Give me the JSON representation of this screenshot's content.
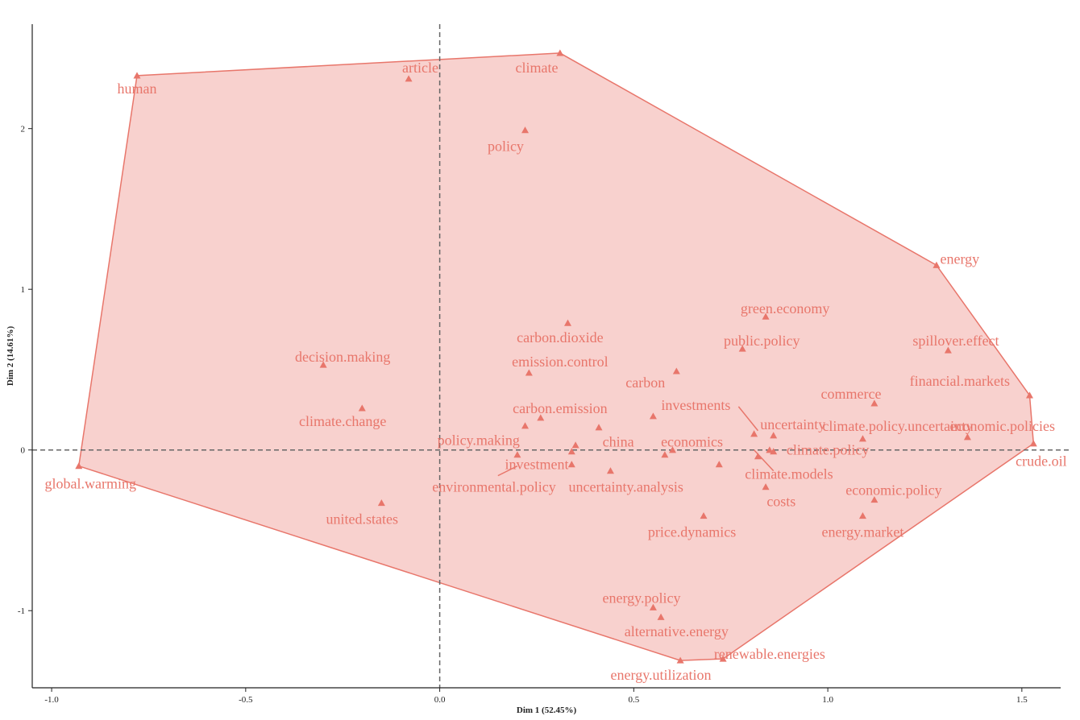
{
  "chart_data": {
    "type": "scatter",
    "title": "",
    "xlabel": "Dim 1 (52.45%)",
    "ylabel": "Dim 2 (14.61%)",
    "xlim": [
      -1.05,
      1.6
    ],
    "ylim": [
      -1.48,
      2.65
    ],
    "xticks": [
      -1.0,
      -0.5,
      0.0,
      0.5,
      1.0,
      1.5
    ],
    "xtick_labels": [
      "-1.0",
      "-0.5",
      "0.0",
      "0.5",
      "1.0",
      "1.5"
    ],
    "yticks": [
      -1,
      0,
      1,
      2
    ],
    "ytick_labels": [
      "-1",
      "0",
      "1",
      "2"
    ],
    "grid": false,
    "reference_lines": {
      "x": 0,
      "y": 0
    },
    "colors": {
      "point": "#e8766b",
      "fill": "#f7c9c5",
      "hull": "#e8766b",
      "axis": "#222222",
      "ref_line": "#666666"
    },
    "hull_order": [
      "human",
      "climate",
      "energy",
      "financial.markets",
      "crude.oil",
      "renewable.energies",
      "energy.utilization",
      "global.warming"
    ],
    "points": [
      {
        "label": "human",
        "x": -0.78,
        "y": 2.33,
        "lx": -0.78,
        "ly": 2.25
      },
      {
        "label": "article",
        "x": -0.08,
        "y": 2.31,
        "lx": -0.05,
        "ly": 2.38
      },
      {
        "label": "climate",
        "x": 0.31,
        "y": 2.47,
        "lx": 0.25,
        "ly": 2.38
      },
      {
        "label": "policy",
        "x": 0.22,
        "y": 1.99,
        "lx": 0.17,
        "ly": 1.89
      },
      {
        "label": "energy",
        "x": 1.28,
        "y": 1.15,
        "lx": 1.34,
        "ly": 1.19
      },
      {
        "label": "green.economy",
        "x": 0.84,
        "y": 0.83,
        "lx": 0.89,
        "ly": 0.88
      },
      {
        "label": "public.policy",
        "x": 0.78,
        "y": 0.63,
        "lx": 0.83,
        "ly": 0.68
      },
      {
        "label": "spillover.effect",
        "x": 1.31,
        "y": 0.62,
        "lx": 1.33,
        "ly": 0.68
      },
      {
        "label": "carbon.dioxide",
        "x": 0.33,
        "y": 0.79,
        "lx": 0.31,
        "ly": 0.7
      },
      {
        "label": "emission.control",
        "x": 0.23,
        "y": 0.48,
        "lx": 0.31,
        "ly": 0.55
      },
      {
        "label": "decision.making",
        "x": -0.3,
        "y": 0.53,
        "lx": -0.25,
        "ly": 0.58
      },
      {
        "label": "carbon",
        "x": 0.61,
        "y": 0.49,
        "lx": 0.53,
        "ly": 0.42
      },
      {
        "label": "commerce",
        "x": 1.12,
        "y": 0.29,
        "lx": 1.06,
        "ly": 0.35
      },
      {
        "label": "investments",
        "x": 0.55,
        "y": 0.21,
        "lx": 0.66,
        "ly": 0.28
      },
      {
        "label": "financial.markets",
        "x": 1.52,
        "y": 0.34,
        "lx": 1.34,
        "ly": 0.43
      },
      {
        "label": "carbon.emission",
        "x": 0.26,
        "y": 0.2,
        "lx": 0.31,
        "ly": 0.26
      },
      {
        "label": "climate.change",
        "x": -0.2,
        "y": 0.26,
        "lx": -0.25,
        "ly": 0.18
      },
      {
        "label": "uncertainty",
        "x": 0.86,
        "y": 0.09,
        "lx": 0.91,
        "ly": 0.16
      },
      {
        "label": "climate.policy.uncertainty",
        "x": 1.09,
        "y": 0.07,
        "lx": 1.18,
        "ly": 0.15
      },
      {
        "label": "economic.policies",
        "x": 1.36,
        "y": 0.08,
        "lx": 1.45,
        "ly": 0.15
      },
      {
        "label": "policy.making",
        "x": 0.22,
        "y": 0.15,
        "lx": 0.1,
        "ly": 0.06
      },
      {
        "label": "china",
        "x": 0.41,
        "y": 0.14,
        "lx": 0.46,
        "ly": 0.05
      },
      {
        "label": "economics",
        "x": 0.6,
        "y": 0.0,
        "lx": 0.65,
        "ly": 0.05
      },
      {
        "label": "climate.policy",
        "x": 0.86,
        "y": -0.01,
        "lx": 1.0,
        "ly": 0.0
      },
      {
        "label": "crude.oil",
        "x": 1.53,
        "y": 0.04,
        "lx": 1.55,
        "ly": -0.07
      },
      {
        "label": "investment",
        "x": 0.34,
        "y": -0.09,
        "lx": 0.25,
        "ly": -0.09
      },
      {
        "label": "climate.models",
        "x": 0.72,
        "y": -0.09,
        "lx": 0.9,
        "ly": -0.15
      },
      {
        "label": "environmental.policy",
        "x": 0.2,
        "y": -0.03,
        "lx": 0.14,
        "ly": -0.23
      },
      {
        "label": "uncertainty.analysis",
        "x": 0.44,
        "y": -0.13,
        "lx": 0.48,
        "ly": -0.23
      },
      {
        "label": "costs",
        "x": 0.84,
        "y": -0.23,
        "lx": 0.88,
        "ly": -0.32
      },
      {
        "label": "economic.policy",
        "x": 1.12,
        "y": -0.31,
        "lx": 1.17,
        "ly": -0.25
      },
      {
        "label": "global.warming",
        "x": -0.93,
        "y": -0.1,
        "lx": -0.9,
        "ly": -0.21
      },
      {
        "label": "united.states",
        "x": -0.15,
        "y": -0.33,
        "lx": -0.2,
        "ly": -0.43
      },
      {
        "label": "price.dynamics",
        "x": 0.68,
        "y": -0.41,
        "lx": 0.65,
        "ly": -0.51
      },
      {
        "label": "energy.market",
        "x": 1.09,
        "y": -0.41,
        "lx": 1.09,
        "ly": -0.51
      },
      {
        "label": "energy.policy",
        "x": 0.55,
        "y": -0.98,
        "lx": 0.52,
        "ly": -0.92
      },
      {
        "label": "alternative.energy",
        "x": 0.57,
        "y": -1.04,
        "lx": 0.61,
        "ly": -1.13
      },
      {
        "label": "renewable.energies",
        "x": 0.73,
        "y": -1.3,
        "lx": 0.85,
        "ly": -1.27
      },
      {
        "label": "energy.utilization",
        "x": 0.62,
        "y": -1.31,
        "lx": 0.57,
        "ly": -1.4
      }
    ],
    "extra_points": [
      {
        "x": 0.35,
        "y": 0.03
      },
      {
        "x": 0.34,
        "y": -0.01
      },
      {
        "x": 0.58,
        "y": -0.03
      },
      {
        "x": 0.85,
        "y": 0.0
      },
      {
        "x": 0.82,
        "y": -0.04
      },
      {
        "x": 0.81,
        "y": 0.1
      }
    ],
    "leaders": [
      {
        "from": [
          0.15,
          -0.16
        ],
        "to": [
          0.2,
          -0.1
        ]
      },
      {
        "from": [
          0.77,
          0.27
        ],
        "to": [
          0.82,
          0.12
        ]
      },
      {
        "from": [
          0.81,
          0.0
        ],
        "to": [
          0.86,
          -0.13
        ]
      }
    ]
  }
}
